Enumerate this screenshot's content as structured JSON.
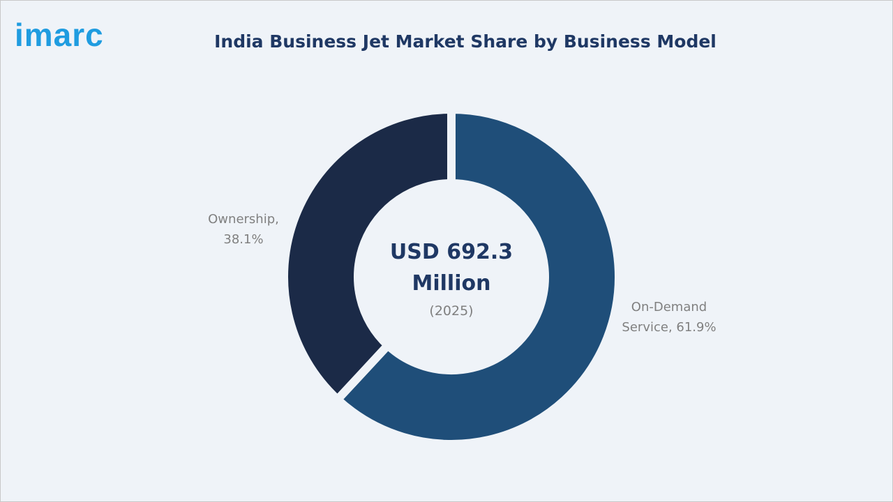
{
  "logo": "imarc",
  "chart_data": {
    "type": "donut",
    "title": "India Business Jet Market Share by Business Model",
    "center_text": "USD 692.3 Million",
    "center_subtext": "(2025)",
    "values": [
      61.9,
      38.1
    ],
    "value_labels": [
      "On-Demand Service, 61.9%",
      "Ownership, 38.1%"
    ],
    "colors": [
      "#1f4e79",
      "#1b2a47"
    ]
  }
}
